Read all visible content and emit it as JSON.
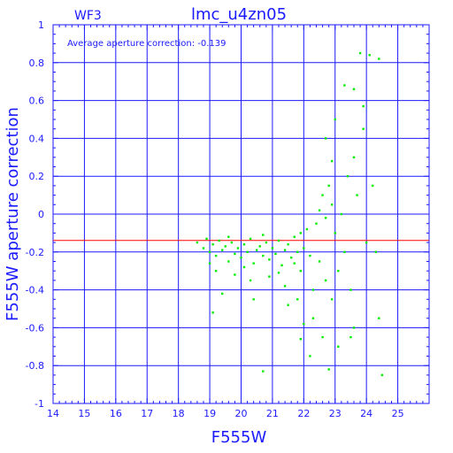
{
  "chart_data": {
    "type": "scatter",
    "title": "lmc_u4zn05",
    "corner_label": "WF3",
    "annotation": "Average aperture correction: -0.139",
    "xlabel": "F555W",
    "ylabel": "F555W aperture correction",
    "xlim": [
      14,
      26
    ],
    "ylim": [
      -1,
      1
    ],
    "x_ticks": [
      "14",
      "15",
      "16",
      "17",
      "18",
      "19",
      "20",
      "21",
      "22",
      "23",
      "24",
      "25"
    ],
    "y_ticks": [
      "-1",
      "-0.8",
      "-0.6",
      "-0.4",
      "-0.2",
      "0",
      "0.2",
      "0.4",
      "0.6",
      "0.8",
      "1"
    ],
    "grid": true,
    "reference_line": {
      "y": -0.139,
      "color": "#ff0000"
    },
    "series": [
      {
        "color": "#00ee00",
        "points": [
          [
            18.6,
            -0.15
          ],
          [
            18.8,
            -0.18
          ],
          [
            18.9,
            -0.13
          ],
          [
            19.0,
            -0.2
          ],
          [
            19.1,
            -0.16
          ],
          [
            19.2,
            -0.22
          ],
          [
            19.3,
            -0.14
          ],
          [
            19.4,
            -0.19
          ],
          [
            19.5,
            -0.17
          ],
          [
            19.6,
            -0.25
          ],
          [
            19.7,
            -0.15
          ],
          [
            19.8,
            -0.21
          ],
          [
            19.9,
            -0.18
          ],
          [
            20.0,
            -0.23
          ],
          [
            20.1,
            -0.16
          ],
          [
            20.2,
            -0.2
          ],
          [
            20.3,
            -0.13
          ],
          [
            20.4,
            -0.26
          ],
          [
            20.5,
            -0.19
          ],
          [
            20.6,
            -0.17
          ],
          [
            20.7,
            -0.22
          ],
          [
            20.8,
            -0.15
          ],
          [
            20.9,
            -0.24
          ],
          [
            21.0,
            -0.18
          ],
          [
            21.1,
            -0.21
          ],
          [
            21.2,
            -0.14
          ],
          [
            21.3,
            -0.27
          ],
          [
            21.4,
            -0.19
          ],
          [
            21.5,
            -0.16
          ],
          [
            21.6,
            -0.23
          ],
          [
            21.7,
            -0.12
          ],
          [
            21.8,
            -0.2
          ],
          [
            21.9,
            -0.1
          ],
          [
            22.0,
            -0.18
          ],
          [
            22.1,
            -0.08
          ],
          [
            22.2,
            -0.22
          ],
          [
            19.2,
            -0.3
          ],
          [
            19.8,
            -0.32
          ],
          [
            20.3,
            -0.35
          ],
          [
            20.9,
            -0.33
          ],
          [
            21.4,
            -0.38
          ],
          [
            21.9,
            -0.3
          ],
          [
            22.3,
            -0.4
          ],
          [
            19.0,
            -0.26
          ],
          [
            19.6,
            -0.12
          ],
          [
            20.1,
            -0.28
          ],
          [
            20.7,
            -0.11
          ],
          [
            21.2,
            -0.31
          ],
          [
            21.7,
            -0.26
          ],
          [
            22.4,
            -0.05
          ],
          [
            22.5,
            0.02
          ],
          [
            22.6,
            0.1
          ],
          [
            22.7,
            -0.02
          ],
          [
            22.8,
            0.15
          ],
          [
            22.9,
            0.05
          ],
          [
            23.0,
            -0.1
          ],
          [
            22.5,
            -0.25
          ],
          [
            22.7,
            -0.35
          ],
          [
            22.9,
            -0.45
          ],
          [
            22.3,
            -0.55
          ],
          [
            22.6,
            -0.65
          ],
          [
            23.1,
            -0.3
          ],
          [
            23.3,
            -0.2
          ],
          [
            23.5,
            -0.4
          ],
          [
            23.2,
            0.0
          ],
          [
            23.4,
            0.2
          ],
          [
            23.6,
            0.3
          ],
          [
            23.7,
            0.1
          ],
          [
            23.9,
            0.45
          ],
          [
            24.0,
            -0.15
          ],
          [
            24.2,
            0.15
          ],
          [
            24.4,
            -0.55
          ],
          [
            22.7,
            0.4
          ],
          [
            22.9,
            0.28
          ],
          [
            23.0,
            0.5
          ],
          [
            23.3,
            0.68
          ],
          [
            23.6,
            0.66
          ],
          [
            23.8,
            0.85
          ],
          [
            24.1,
            0.84
          ],
          [
            24.4,
            0.82
          ],
          [
            23.9,
            0.57
          ],
          [
            24.3,
            -0.2
          ],
          [
            23.6,
            -0.6
          ],
          [
            23.1,
            -0.7
          ],
          [
            22.8,
            -0.82
          ],
          [
            22.2,
            -0.75
          ],
          [
            21.9,
            -0.66
          ],
          [
            24.5,
            -0.85
          ],
          [
            19.1,
            -0.52
          ],
          [
            20.7,
            -0.83
          ],
          [
            21.5,
            -0.48
          ],
          [
            22.0,
            -0.58
          ],
          [
            21.8,
            -0.45
          ],
          [
            19.4,
            -0.42
          ],
          [
            20.4,
            -0.45
          ],
          [
            23.5,
            -0.65
          ]
        ]
      }
    ]
  }
}
